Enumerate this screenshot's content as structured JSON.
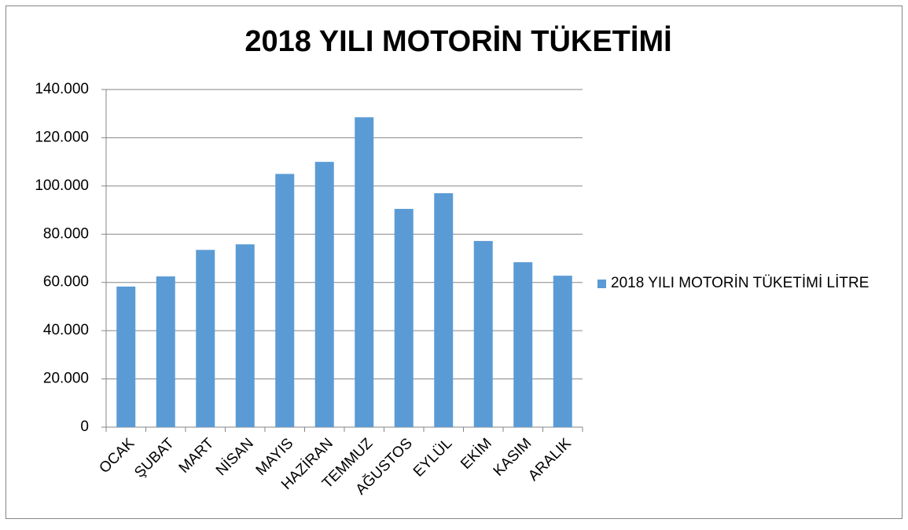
{
  "chart_data": {
    "type": "bar",
    "title": "2018 YILI MOTORİN TÜKETİMİ",
    "categories": [
      "OCAK",
      "ŞUBAT",
      "MART",
      "NİSAN",
      "MAYIS",
      "HAZİRAN",
      "TEMMUZ",
      "AĞUSTOS",
      "EYLÜL",
      "EKİM",
      "KASIM",
      "ARALIK"
    ],
    "series": [
      {
        "name": "2018 YILI MOTORİN TÜKETİMİ LİTRE",
        "color": "#5b9bd5",
        "values": [
          58300,
          62500,
          73500,
          75800,
          105000,
          110000,
          128500,
          90500,
          97000,
          77200,
          68400,
          62800
        ]
      }
    ],
    "ylim": [
      0,
      140000
    ],
    "yticks": [
      0,
      {
        "value": 20000,
        "label": "20.000"
      },
      {
        "value": 40000,
        "label": "40.000"
      },
      {
        "value": 60000,
        "label": "60.000"
      },
      {
        "value": 80000,
        "label": "80.000"
      },
      {
        "value": 100000,
        "label": "100.000"
      },
      {
        "value": 120000,
        "label": "120.000"
      },
      {
        "value": 140000,
        "label": "140.000"
      }
    ],
    "grid": true,
    "legend": "right"
  }
}
